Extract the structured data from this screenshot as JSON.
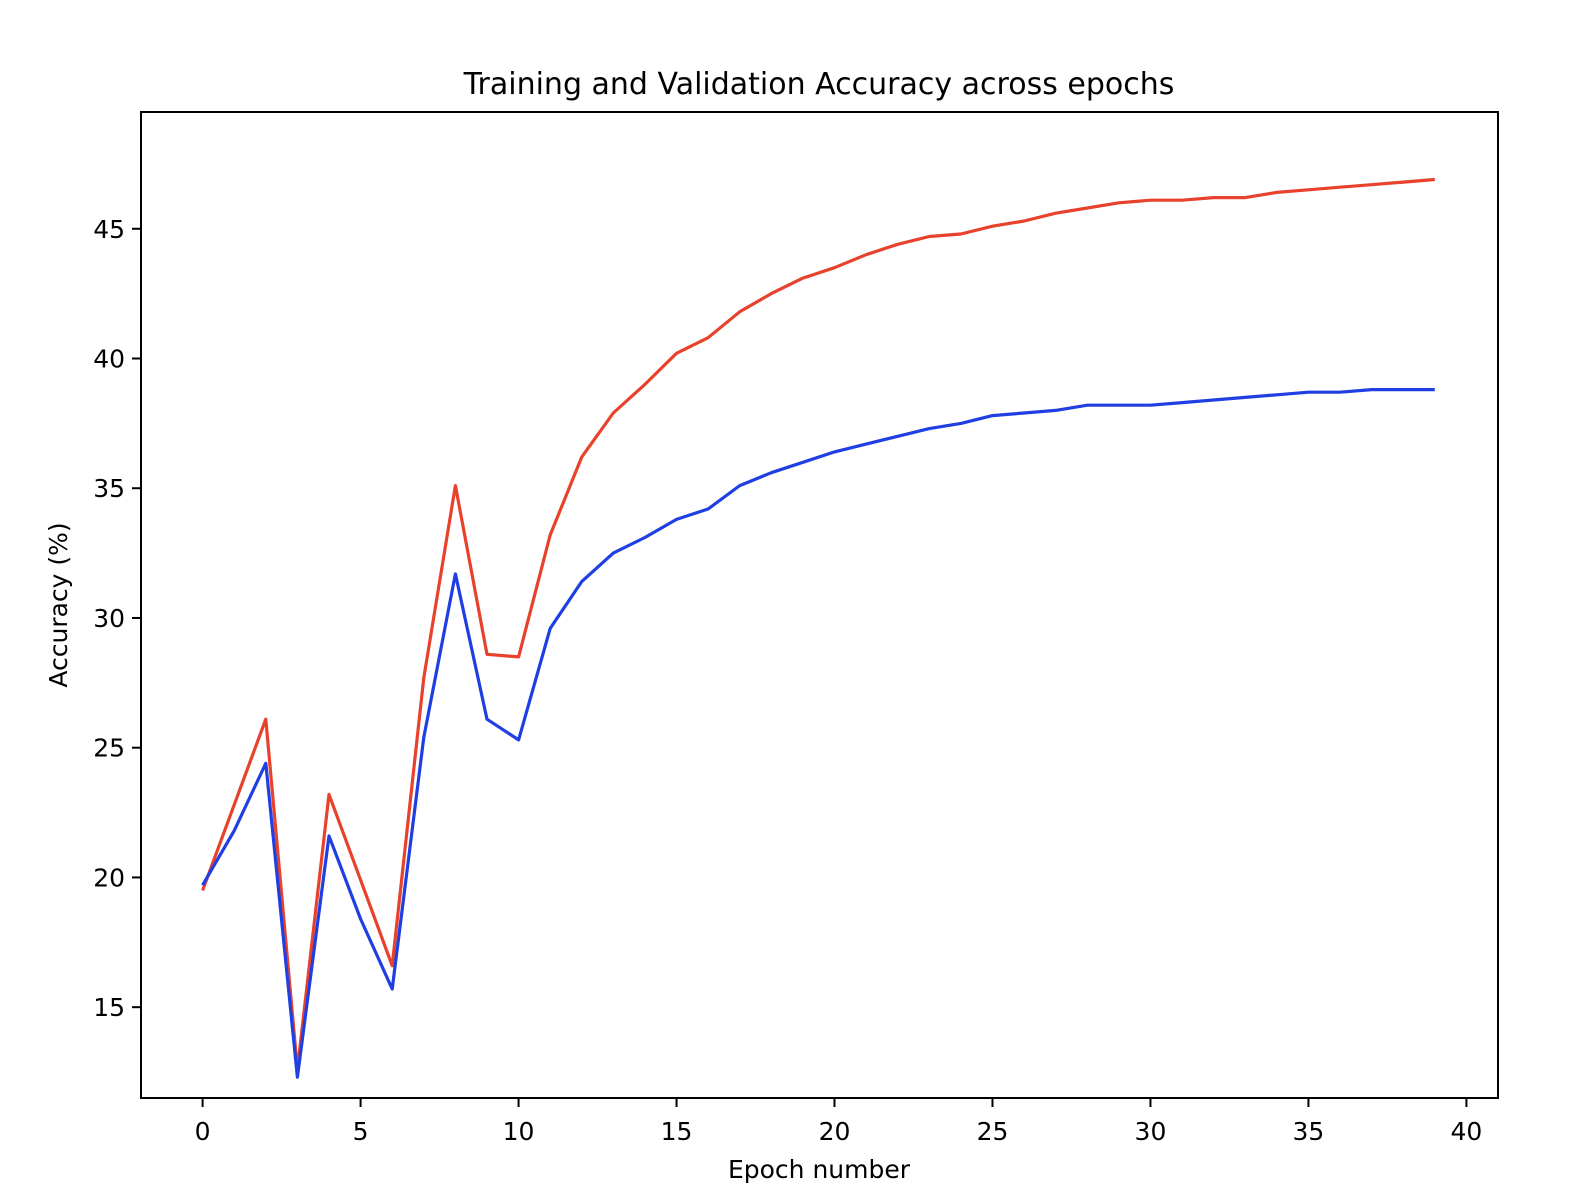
{
  "chart_data": {
    "type": "line",
    "title": "Training and Validation Accuracy across epochs",
    "xlabel": "Epoch number",
    "ylabel": "Accuracy (%)",
    "xlim": [
      -1.95,
      41
    ],
    "ylim": [
      11.5,
      49.5
    ],
    "xticks": [
      0,
      5,
      10,
      15,
      20,
      25,
      30,
      35,
      40
    ],
    "yticks": [
      15,
      20,
      25,
      30,
      35,
      40,
      45
    ],
    "grid": false,
    "legend": "none",
    "x": [
      0,
      1,
      2,
      3,
      4,
      5,
      6,
      7,
      8,
      9,
      10,
      11,
      12,
      13,
      14,
      15,
      16,
      17,
      18,
      19,
      20,
      21,
      22,
      23,
      24,
      25,
      26,
      27,
      28,
      29,
      30,
      31,
      32,
      33,
      34,
      35,
      36,
      37,
      38,
      39
    ],
    "series": [
      {
        "color": "#e8412c",
        "values": [
          19.5,
          22.8,
          26.1,
          12.6,
          23.2,
          19.9,
          16.6,
          27.7,
          35.1,
          28.6,
          28.5,
          33.2,
          36.2,
          37.9,
          39.0,
          40.2,
          40.8,
          41.8,
          42.5,
          43.1,
          43.5,
          44.0,
          44.4,
          44.7,
          44.8,
          45.1,
          45.3,
          45.6,
          45.8,
          46.0,
          46.1,
          46.1,
          46.2,
          46.2,
          46.4,
          46.5,
          46.6,
          46.7,
          46.8,
          46.9
        ]
      },
      {
        "color": "#1f3fe3",
        "values": [
          19.7,
          21.8,
          24.4,
          12.3,
          21.6,
          18.4,
          15.7,
          25.4,
          31.7,
          26.1,
          25.3,
          29.6,
          31.4,
          32.5,
          33.1,
          33.8,
          34.2,
          35.1,
          35.6,
          36.0,
          36.4,
          36.7,
          37.0,
          37.3,
          37.5,
          37.8,
          37.9,
          38.0,
          38.2,
          38.2,
          38.2,
          38.3,
          38.4,
          38.5,
          38.6,
          38.7,
          38.7,
          38.8,
          38.8,
          38.8
        ]
      }
    ]
  }
}
